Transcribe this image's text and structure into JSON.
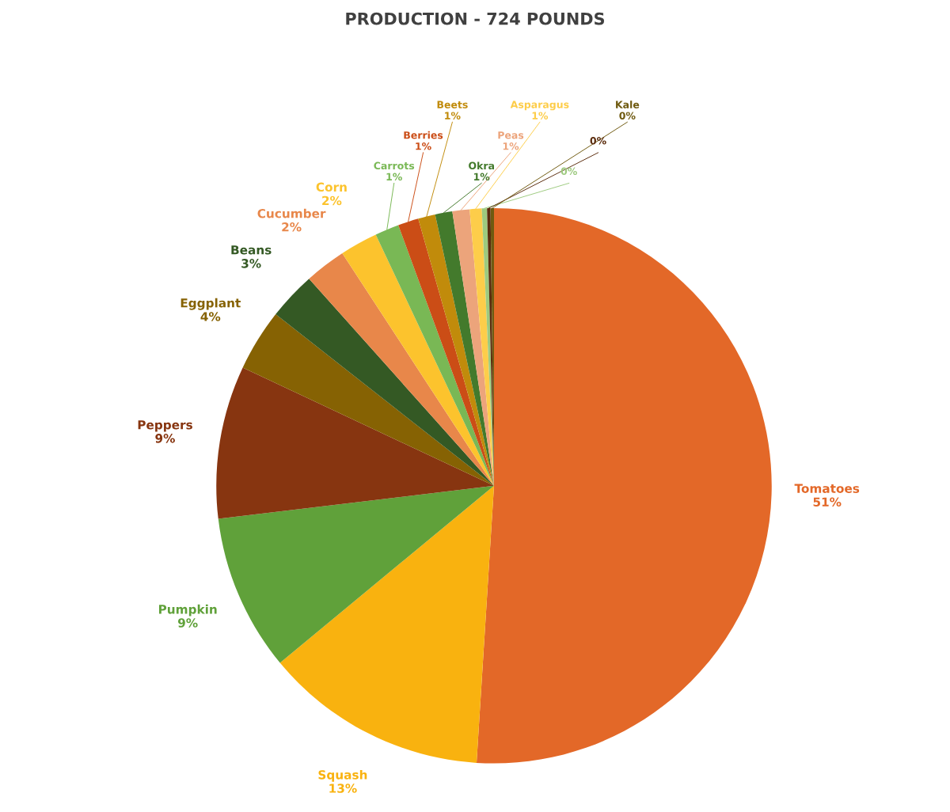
{
  "chart_data": {
    "type": "pie",
    "title": "PRODUCTION - 724 POUNDS",
    "categories": [
      "Tomatoes",
      "Squash",
      "Pumpkin",
      "Peppers",
      "Eggplant",
      "Beans",
      "Cucumber",
      "Corn",
      "Carrots",
      "Berries",
      "Beets",
      "Okra",
      "Peas",
      "Asparagus",
      null,
      null,
      "Kale"
    ],
    "values": [
      51,
      13,
      9.1,
      8.9,
      3.6,
      2.8,
      2.4,
      2.2,
      1.4,
      1.2,
      1.0,
      1.0,
      1.0,
      0.7,
      0.3,
      0.2,
      0.2
    ],
    "value_labels": [
      "51%",
      "13%",
      "9%",
      "9%",
      "4%",
      "3%",
      "2%",
      "2%",
      "1%",
      "1%",
      "1%",
      "1%",
      "1%",
      "1%",
      "0%",
      "0%",
      "0%"
    ],
    "colors": [
      "#e36828",
      "#f9b20f",
      "#60a13a",
      "#873510",
      "#866203",
      "#345924",
      "#e8874a",
      "#fcc32d",
      "#79b855",
      "#cb4d16",
      "#c18b0b",
      "#437a2c",
      "#eca47b",
      "#fdcd4a",
      "#9dca7f",
      "#5b2c0d",
      "#6f5a10"
    ],
    "legend": false
  }
}
